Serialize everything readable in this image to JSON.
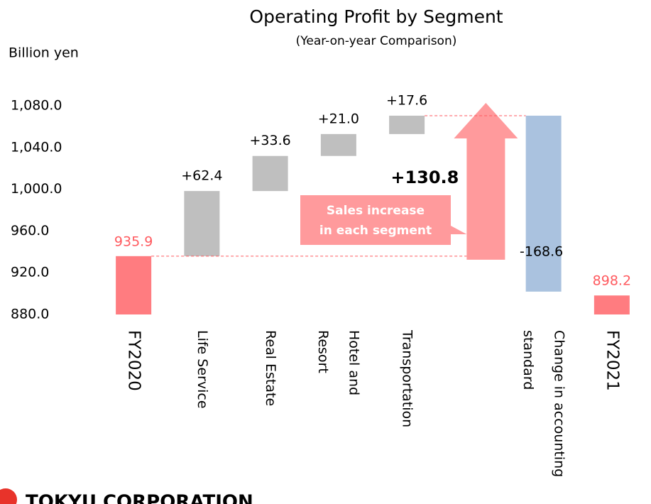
{
  "chart_data": {
    "type": "waterfall",
    "title": "Operating Profit by Segment",
    "subtitle": "(Year-on-year Comparison)",
    "y_axis_label": "Billion yen",
    "categories": [
      "FY2020",
      "Life Service",
      "Real Estate",
      "Hotel and Resort",
      "Transportation",
      null,
      "Change in accounting standard",
      "FY2021"
    ],
    "values": [
      935.9,
      62.4,
      33.6,
      21.0,
      17.6,
      null,
      -168.6,
      898.2
    ],
    "value_labels": [
      "935.9",
      "+62.4",
      "+33.6",
      "+21.0",
      "+17.6",
      null,
      "-168.6",
      "898.2"
    ],
    "colors": [
      "#ff7c80",
      "#bfbfbf",
      "#bfbfbf",
      "#bfbfbf",
      "#bfbfbf",
      null,
      "#aac2df",
      "#ff7c80"
    ],
    "ylim": [
      880,
      1100
    ],
    "yticks": [
      {
        "value": 880,
        "label": "880.0"
      },
      {
        "value": 920,
        "label": "920.0"
      },
      {
        "value": 960,
        "label": "960.0"
      },
      {
        "value": 1000,
        "label": "1,000.0"
      },
      {
        "value": 1040,
        "label": "1,040.0"
      },
      {
        "value": 1080,
        "label": "1,080.0"
      }
    ],
    "annotations": {
      "total_increase": "+130.8",
      "callout": [
        "Sales increase",
        "in each segment"
      ]
    }
  },
  "logo": "TOKYU CORPORATION"
}
